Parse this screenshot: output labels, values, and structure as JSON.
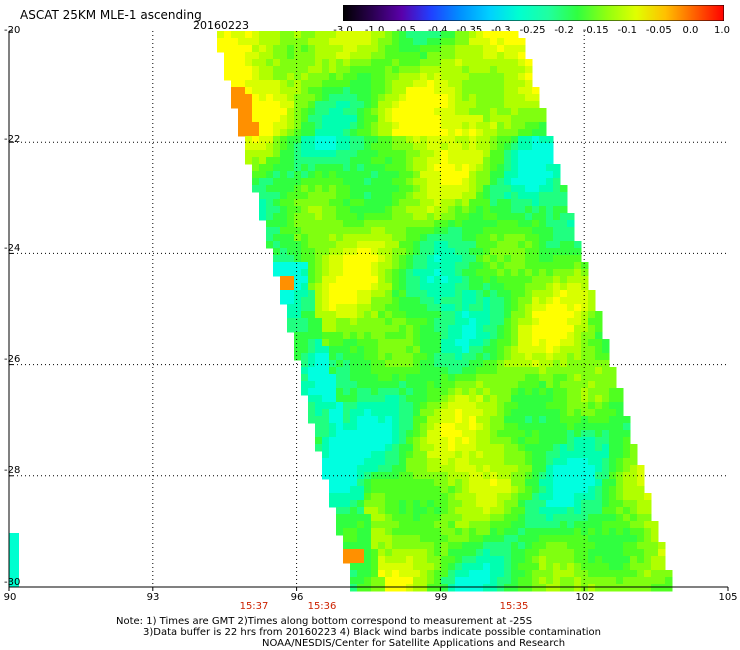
{
  "header": {
    "title": "ASCAT 25KM MLE-1 ascending",
    "date": "20160223"
  },
  "colorbar": {
    "labels": [
      "-3.0",
      "-1.0",
      "-0.5",
      "-0.4",
      "-0.35",
      "-0.3",
      "-0.25",
      "-0.2",
      "-0.15",
      "-0.1",
      "-0.05",
      "0.0",
      "1.0"
    ],
    "colors": [
      "#000000",
      "#2a0050",
      "#5a00aa",
      "#2040ff",
      "#0090ff",
      "#00d0ff",
      "#00ffd0",
      "#20ffa0",
      "#30ff40",
      "#90ff10",
      "#e0ff00",
      "#ffc000",
      "#ff6000",
      "#ff0000"
    ]
  },
  "axes": {
    "y_ticks": [
      "-20",
      "-22",
      "-24",
      "-26",
      "-28",
      "-30"
    ],
    "x_ticks": [
      "90",
      "93",
      "96",
      "99",
      "102",
      "105"
    ],
    "lon_range": [
      90,
      105
    ],
    "lat_range": [
      -30,
      -20
    ],
    "grid": true
  },
  "times": [
    "15:37",
    "15:36",
    "15:35"
  ],
  "notes": {
    "line1": "Note: 1) Times are GMT 2)Times along bottom correspond to measurement at -25S",
    "line2": "3)Data buffer is 22 hrs from 20160223 4) Black wind barbs indicate possible contamination",
    "line3": "NOAA/NESDIS/Center for Satellite Applications and Research"
  }
}
